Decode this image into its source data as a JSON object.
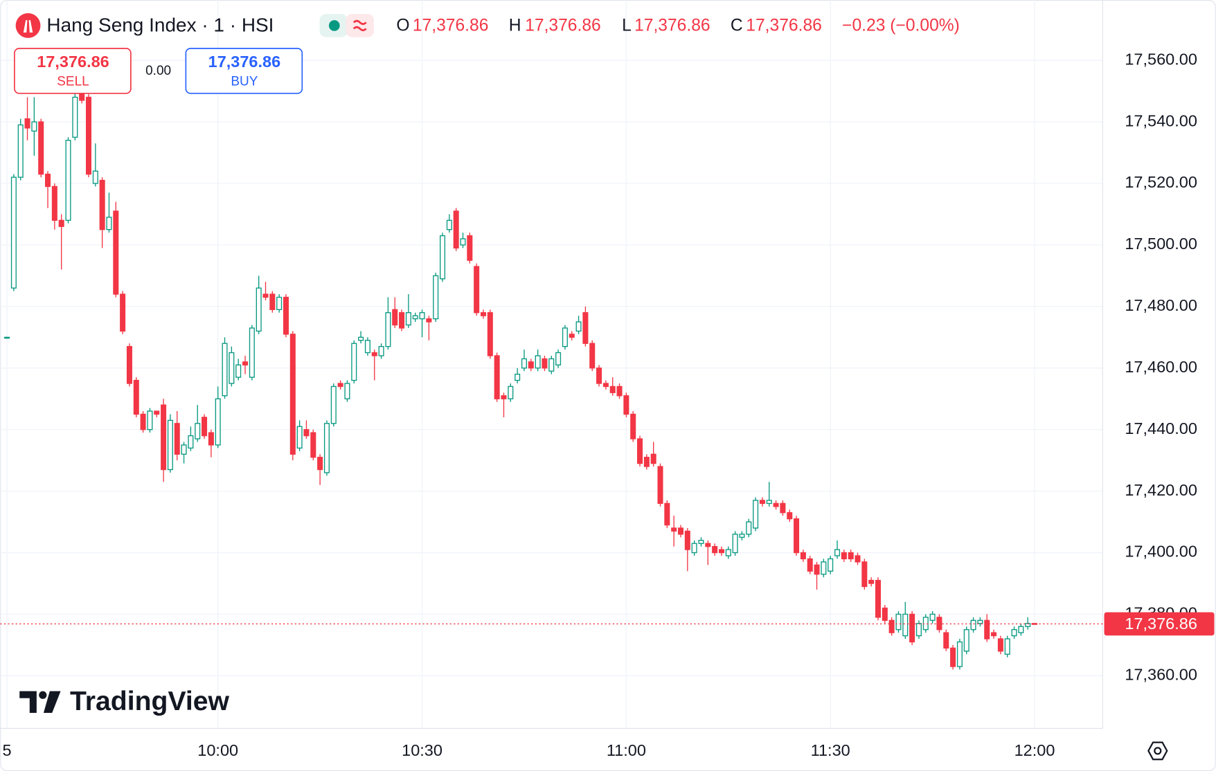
{
  "header": {
    "title": "Hang Seng Index · 1 · HSI",
    "legend": {
      "o_label": "O",
      "open": "17,376.86",
      "h_label": "H",
      "high": "17,376.86",
      "l_label": "L",
      "low": "17,376.86",
      "c_label": "C",
      "close": "17,376.86",
      "change": "−0.23 (−0.00%)"
    }
  },
  "trade": {
    "sell_price": "17,376.86",
    "sell": "SELL",
    "spread": "0.00",
    "buy_price": "17,376.86",
    "buy": "BUY"
  },
  "watermark": "TradingView",
  "chart_data": {
    "type": "candlestick",
    "x": [
      "09:29",
      "09:30",
      "09:31",
      "09:32",
      "09:33",
      "09:34",
      "09:35",
      "09:36",
      "09:37",
      "09:38",
      "09:39",
      "09:40",
      "09:41",
      "09:42",
      "09:43",
      "09:44",
      "09:45",
      "09:46",
      "09:47",
      "09:48",
      "09:49",
      "09:50",
      "09:51",
      "09:52",
      "09:53",
      "09:54",
      "09:55",
      "09:56",
      "09:57",
      "09:58",
      "09:59",
      "10:00",
      "10:01",
      "10:02",
      "10:03",
      "10:04",
      "10:05",
      "10:06",
      "10:07",
      "10:08",
      "10:09",
      "10:10",
      "10:11",
      "10:12",
      "10:13",
      "10:14",
      "10:15",
      "10:16",
      "10:17",
      "10:18",
      "10:19",
      "10:20",
      "10:21",
      "10:22",
      "10:23",
      "10:24",
      "10:25",
      "10:26",
      "10:27",
      "10:28",
      "10:29",
      "10:30",
      "10:31",
      "10:32",
      "10:33",
      "10:34",
      "10:35",
      "10:36",
      "10:37",
      "10:38",
      "10:39",
      "10:40",
      "10:41",
      "10:42",
      "10:43",
      "10:44",
      "10:45",
      "10:46",
      "10:47",
      "10:48",
      "10:49",
      "10:50",
      "10:51",
      "10:52",
      "10:53",
      "10:54",
      "10:55",
      "10:56",
      "10:57",
      "10:58",
      "10:59",
      "11:00",
      "11:01",
      "11:02",
      "11:03",
      "11:04",
      "11:05",
      "11:06",
      "11:07",
      "11:08",
      "11:09",
      "11:10",
      "11:11",
      "11:12",
      "11:13",
      "11:14",
      "11:15",
      "11:16",
      "11:17",
      "11:18",
      "11:19",
      "11:20",
      "11:21",
      "11:22",
      "11:23",
      "11:24",
      "11:25",
      "11:26",
      "11:27",
      "11:28",
      "11:29",
      "11:30",
      "11:31",
      "11:32",
      "11:33",
      "11:34",
      "11:35",
      "11:36",
      "11:37",
      "11:38",
      "11:39",
      "11:40",
      "11:41",
      "11:42",
      "11:43",
      "11:44",
      "11:45",
      "11:46",
      "11:47",
      "11:48",
      "11:49",
      "11:50",
      "11:51",
      "11:52",
      "11:53",
      "11:54",
      "11:55",
      "11:56",
      "11:57",
      "11:58",
      "11:59",
      "12:00"
    ],
    "open": [
      17470,
      17486,
      17522,
      17541,
      17537,
      17540,
      17523,
      17519,
      17508,
      17508,
      17535,
      17549,
      17548,
      17520,
      17521,
      17505,
      17511,
      17484,
      17467,
      17456,
      17445,
      17440,
      17446,
      17448,
      17427,
      17442,
      17432,
      17434,
      17437,
      17444,
      17439,
      17435,
      17451,
      17455,
      17457,
      17462,
      17457,
      17472,
      17484,
      17484,
      17479,
      17483,
      17471,
      17434,
      17440,
      17439,
      17431,
      17426,
      17442,
      17455,
      17450,
      17456,
      17469,
      17465,
      17465,
      17464,
      17467,
      17479,
      17478,
      17474,
      17476,
      17476,
      17476,
      17476,
      17489,
      17505,
      17511,
      17500,
      17503,
      17493,
      17478,
      17478,
      17464,
      17451,
      17450,
      17456,
      17460,
      17462,
      17460,
      17463,
      17459,
      17461,
      17467,
      17471,
      17472,
      17478,
      17468,
      17460,
      17455,
      17454,
      17454,
      17451,
      17445,
      17437,
      17431,
      17432,
      17428,
      17416,
      17408,
      17408,
      17407,
      17400,
      17403,
      17403,
      17402,
      17401,
      17399,
      17400,
      17405,
      17406,
      17408,
      17417,
      17416,
      17416,
      17416,
      17413,
      17411,
      17400,
      17398,
      17396,
      17393,
      17394,
      17399,
      17400,
      17400,
      17399,
      17397,
      17391,
      17391,
      17382,
      17378,
      17375,
      17373,
      17380,
      17373,
      17375,
      17378,
      17379,
      17374,
      17369,
      17363,
      17368,
      17375,
      17377,
      17378,
      17374,
      17372,
      17367,
      17373,
      17374,
      17376,
      17377
    ],
    "high": [
      17470,
      17523,
      17541,
      17548,
      17548,
      17541,
      17524,
      17520,
      17510,
      17535,
      17558,
      17558,
      17549,
      17533,
      17522,
      17517,
      17514,
      17485,
      17468,
      17457,
      17446,
      17447,
      17446,
      17450,
      17445,
      17446,
      17436,
      17441,
      17448,
      17445,
      17440,
      17454,
      17470,
      17467,
      17463,
      17464,
      17474,
      17490,
      17488,
      17485,
      17484,
      17484,
      17472,
      17443,
      17443,
      17440,
      17432,
      17443,
      17455,
      17456,
      17456,
      17469,
      17472,
      17470,
      17466,
      17468,
      17483,
      17483,
      17479,
      17484,
      17478,
      17479,
      17477,
      17491,
      17504,
      17510,
      17512,
      17504,
      17504,
      17494,
      17479,
      17479,
      17465,
      17452,
      17455,
      17460,
      17466,
      17463,
      17466,
      17464,
      17464,
      17466,
      17474,
      17472,
      17477,
      17480,
      17469,
      17461,
      17456,
      17457,
      17455,
      17452,
      17446,
      17438,
      17432,
      17436,
      17429,
      17417,
      17412,
      17409,
      17408,
      17404,
      17405,
      17404,
      17403,
      17402,
      17402,
      17407,
      17407,
      17411,
      17418,
      17418,
      17423,
      17417,
      17417,
      17414,
      17412,
      17401,
      17399,
      17397,
      17398,
      17399,
      17404,
      17401,
      17401,
      17400,
      17398,
      17392,
      17392,
      17383,
      17379,
      17381,
      17384,
      17381,
      17378,
      17380,
      17381,
      17380,
      17375,
      17370,
      17372,
      17376,
      17379,
      17379,
      17380,
      17375,
      17373,
      17373,
      17376,
      17377,
      17379,
      17377
    ],
    "low": [
      17470,
      17485,
      17521,
      17534,
      17529,
      17522,
      17512,
      17505,
      17492,
      17507,
      17534,
      17546,
      17522,
      17519,
      17499,
      17504,
      17483,
      17471,
      17454,
      17444,
      17439,
      17439,
      17444,
      17423,
      17426,
      17430,
      17429,
      17433,
      17436,
      17437,
      17431,
      17434,
      17450,
      17454,
      17456,
      17458,
      17456,
      17471,
      17482,
      17478,
      17478,
      17470,
      17430,
      17433,
      17437,
      17430,
      17422,
      17425,
      17441,
      17453,
      17449,
      17455,
      17468,
      17464,
      17456,
      17463,
      17466,
      17473,
      17472,
      17473,
      17475,
      17470,
      17469,
      17475,
      17488,
      17504,
      17498,
      17499,
      17494,
      17477,
      17476,
      17463,
      17449,
      17444,
      17449,
      17455,
      17459,
      17459,
      17459,
      17459,
      17458,
      17460,
      17466,
      17469,
      17471,
      17467,
      17459,
      17454,
      17453,
      17451,
      17450,
      17444,
      17436,
      17428,
      17427,
      17428,
      17415,
      17408,
      17402,
      17405,
      17394,
      17399,
      17402,
      17396,
      17399,
      17399,
      17398,
      17399,
      17404,
      17405,
      17407,
      17415,
      17415,
      17414,
      17412,
      17410,
      17399,
      17397,
      17393,
      17388,
      17392,
      17393,
      17398,
      17397,
      17397,
      17396,
      17388,
      17389,
      17378,
      17377,
      17373,
      17374,
      17372,
      17370,
      17372,
      17374,
      17377,
      17374,
      17368,
      17362,
      17362,
      17367,
      17374,
      17376,
      17371,
      17372,
      17367,
      17366,
      17372,
      17373,
      17375,
      17376.86
    ],
    "close": [
      17470,
      17522,
      17539,
      17538,
      17540,
      17523,
      17519,
      17508,
      17506,
      17534,
      17548,
      17547,
      17523,
      17524,
      17505,
      17509,
      17484,
      17472,
      17455,
      17445,
      17440,
      17446,
      17445,
      17427,
      17443,
      17432,
      17435,
      17438,
      17442,
      17438,
      17435,
      17450,
      17468,
      17465,
      17461,
      17461,
      17473,
      17486,
      17483,
      17479,
      17483,
      17471,
      17432,
      17441,
      17438,
      17431,
      17427,
      17442,
      17454,
      17454,
      17455,
      17468,
      17470,
      17469,
      17464,
      17467,
      17478,
      17474,
      17473,
      17478,
      17477,
      17478,
      17475,
      17490,
      17503,
      17508,
      17499,
      17502,
      17495,
      17478,
      17477,
      17464,
      17450,
      17450,
      17454,
      17458,
      17463,
      17460,
      17464,
      17460,
      17463,
      17465,
      17473,
      17470,
      17475,
      17468,
      17460,
      17455,
      17454,
      17452,
      17451,
      17445,
      17437,
      17429,
      17428,
      17429,
      17416,
      17409,
      17407,
      17406,
      17401,
      17403,
      17404,
      17402,
      17400,
      17400,
      17401,
      17406,
      17406,
      17410,
      17417,
      17416,
      17417,
      17415,
      17413,
      17411,
      17400,
      17398,
      17394,
      17393,
      17397,
      17398,
      17401,
      17398,
      17398,
      17397,
      17389,
      17390,
      17379,
      17378,
      17374,
      17380,
      17380,
      17371,
      17377,
      17379,
      17380,
      17375,
      17369,
      17363,
      17371,
      17375,
      17378,
      17378,
      17372,
      17373,
      17368,
      17372,
      17375,
      17376,
      17377,
      17376.86
    ],
    "up_color": "#089981",
    "down_color": "#f23645",
    "xlim": [
      "09:28",
      "12:10"
    ],
    "ylim": [
      17342.9,
      17579.6
    ],
    "xticks": [
      {
        "value": "09:29",
        "label": "5"
      },
      "10:00",
      "10:30",
      "11:00",
      "11:30",
      "12:00"
    ],
    "yticks": [
      {
        "value": 17360,
        "label": "17,360.00"
      },
      {
        "value": 17380,
        "label": "17,380.00"
      },
      {
        "value": 17400,
        "label": "17,400.00"
      },
      {
        "value": 17420,
        "label": "17,420.00"
      },
      {
        "value": 17440,
        "label": "17,440.00"
      },
      {
        "value": 17460,
        "label": "17,460.00"
      },
      {
        "value": 17480,
        "label": "17,480.00"
      },
      {
        "value": 17500,
        "label": "17,500.00"
      },
      {
        "value": 17520,
        "label": "17,520.00"
      },
      {
        "value": 17540,
        "label": "17,540.00"
      },
      {
        "value": 17560,
        "label": "17,560.00"
      }
    ],
    "grid": true,
    "last_price": {
      "value": 17376.86,
      "label": "17,376.86"
    }
  }
}
